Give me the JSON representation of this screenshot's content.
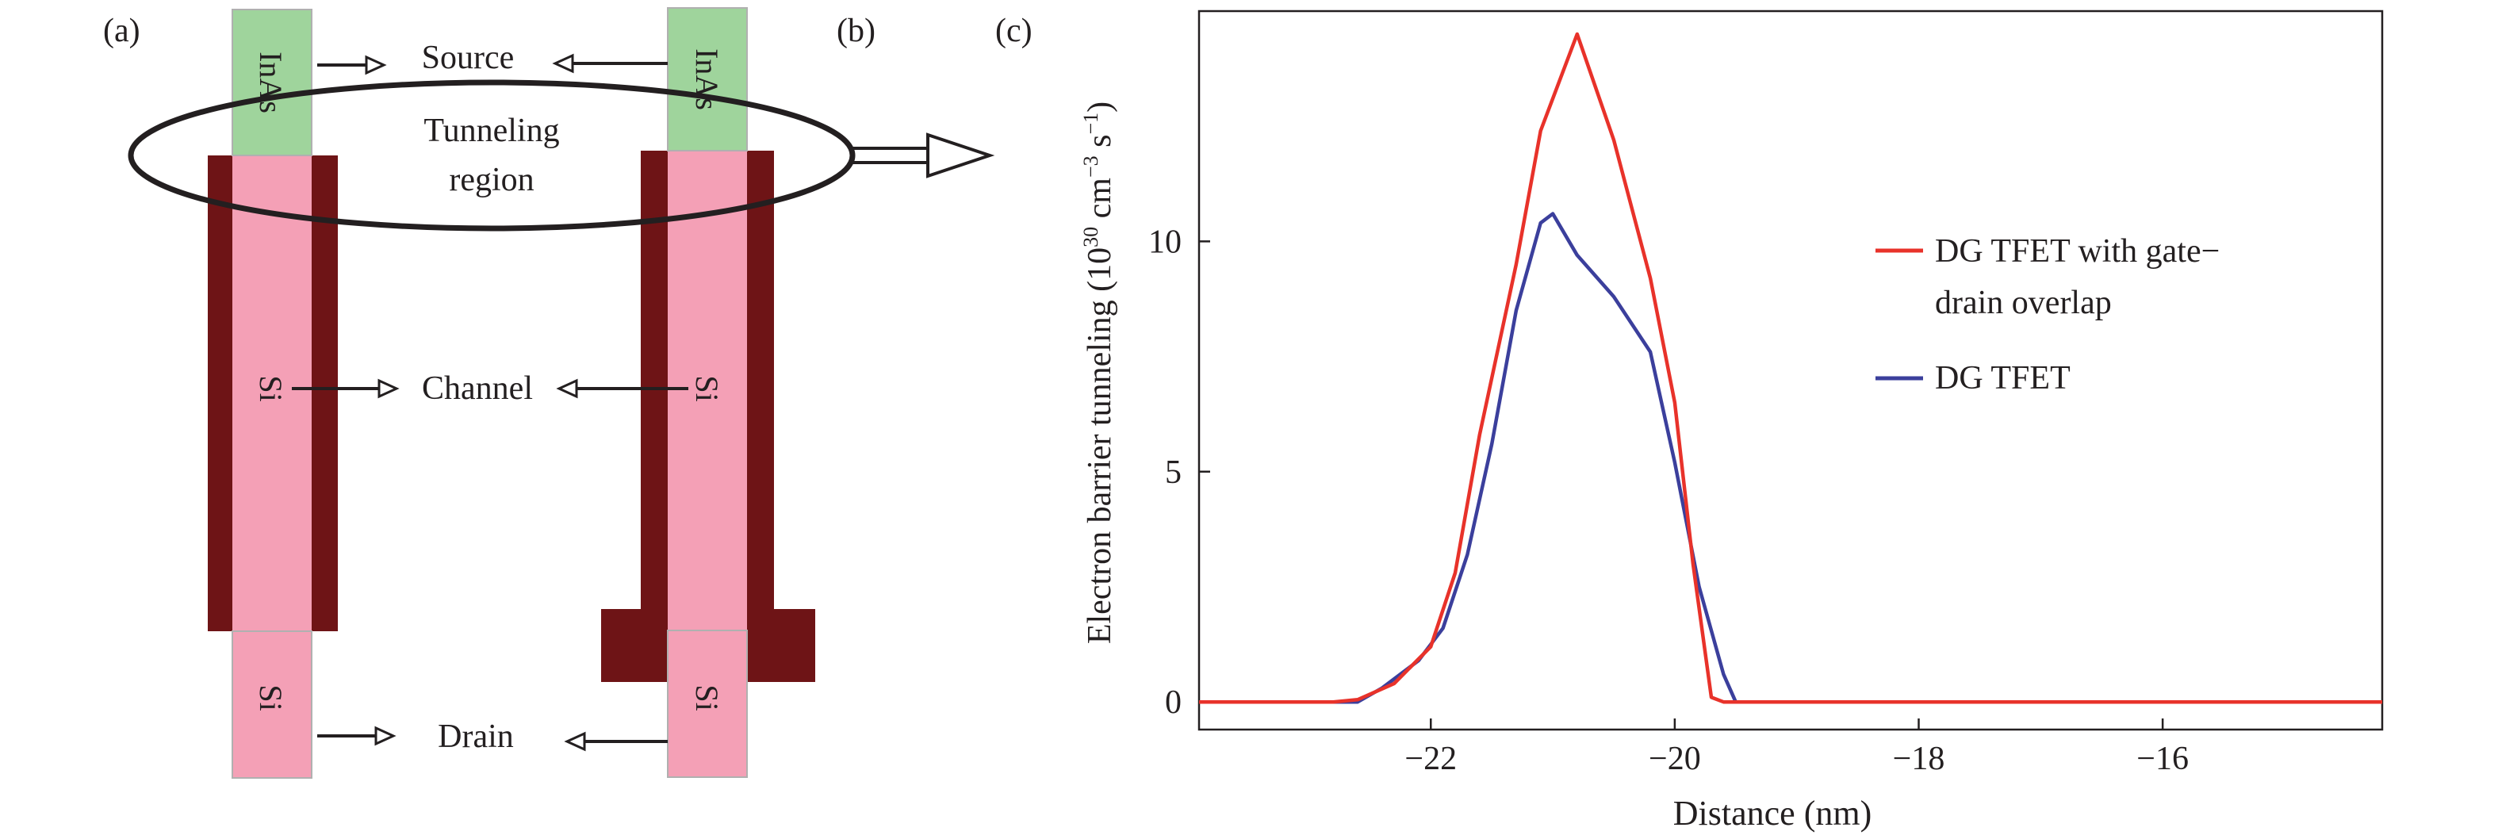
{
  "panels": {
    "a": "(a)",
    "b": "(b)",
    "c": "(c)"
  },
  "diagram": {
    "source_label": "Source",
    "tunneling_line1": "Tunneling",
    "tunneling_line2": "region",
    "channel_label": "Channel",
    "drain_label": "Drain",
    "inas_a": "InAs",
    "inas_b": "InAs",
    "si_channel_a": "Si",
    "si_channel_b": "Si",
    "si_drain_a": "Si",
    "si_drain_b": "Si",
    "colors": {
      "inas": "#9fd49c",
      "si": "#f4a0b6",
      "gate": "#6e1416",
      "line": "#231f20"
    }
  },
  "chart_data": {
    "type": "line",
    "title": "",
    "xlabel": "Distance (nm)",
    "ylabel_main": "Electron barrier tunneling (10",
    "ylabel_exp1": "30",
    "ylabel_mid": " cm",
    "ylabel_exp2": "−3",
    "ylabel_mid2": " s",
    "ylabel_exp3": "−1",
    "ylabel_end": ")",
    "xlim": [
      -23.9,
      -14.2
    ],
    "ylim": [
      -0.6,
      15.0
    ],
    "xticks": [
      -22,
      -20,
      -18,
      -16
    ],
    "xtick_labels": [
      "−22",
      "−20",
      "−18",
      "−16"
    ],
    "yticks": [
      0,
      5,
      10
    ],
    "ytick_labels": [
      "0",
      "5",
      "10"
    ],
    "legend_position": "right",
    "series": [
      {
        "name": "DG TFET with gate−",
        "name_line2": "drain overlap",
        "color": "#e8322a",
        "x": [
          -23.9,
          -22.8,
          -22.6,
          -22.3,
          -22.0,
          -21.8,
          -21.6,
          -21.3,
          -21.1,
          -20.8,
          -20.5,
          -20.2,
          -20.0,
          -19.85,
          -19.7,
          -19.6,
          -14.2
        ],
        "y": [
          0,
          0,
          0.05,
          0.4,
          1.2,
          2.8,
          5.8,
          9.5,
          12.4,
          14.5,
          12.2,
          9.2,
          6.5,
          3.0,
          0.1,
          0,
          0
        ]
      },
      {
        "name": "DG TFET",
        "color": "#3b3f9c",
        "x": [
          -23.9,
          -22.6,
          -22.4,
          -22.1,
          -21.9,
          -21.7,
          -21.5,
          -21.3,
          -21.1,
          -21.0,
          -20.8,
          -20.5,
          -20.2,
          -20.0,
          -19.8,
          -19.6,
          -19.5,
          -14.2
        ],
        "y": [
          0,
          0,
          0.3,
          0.9,
          1.6,
          3.2,
          5.6,
          8.5,
          10.4,
          10.6,
          9.7,
          8.8,
          7.6,
          5.2,
          2.5,
          0.6,
          0,
          0
        ]
      }
    ]
  }
}
